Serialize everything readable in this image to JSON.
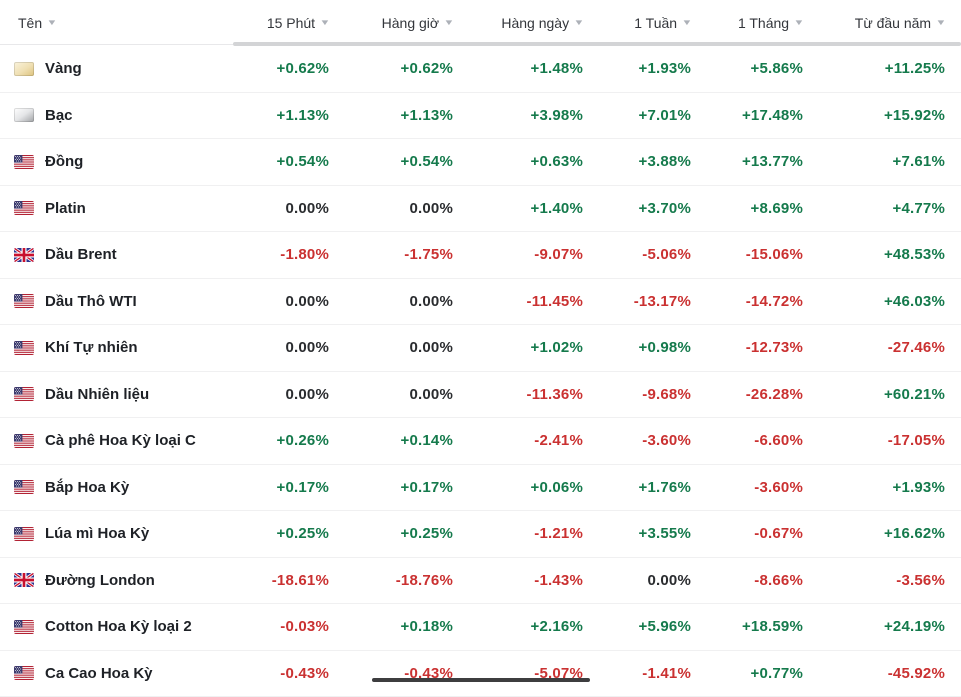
{
  "colors": {
    "positive": "#157a4c",
    "negative": "#ca3131",
    "neutral": "#2a2c2f",
    "scroll_hint": "#d3d4d6"
  },
  "table": {
    "columns": [
      {
        "label": "Tên",
        "sort_icon": "chevron-down-icon"
      },
      {
        "label": "15 Phút",
        "sort_icon": "chevron-down-icon"
      },
      {
        "label": "Hàng giờ",
        "sort_icon": "chevron-down-icon"
      },
      {
        "label": "Hàng ngày",
        "sort_icon": "chevron-down-icon"
      },
      {
        "label": "1 Tuần",
        "sort_icon": "chevron-down-icon"
      },
      {
        "label": "1 Tháng",
        "sort_icon": "chevron-down-icon"
      },
      {
        "label": "Từ đầu năm",
        "sort_icon": "chevron-down-icon"
      }
    ],
    "rows": [
      {
        "name": "Vàng",
        "icon": "gold-bar-icon",
        "values": [
          "+0.62%",
          "+0.62%",
          "+1.48%",
          "+1.93%",
          "+5.86%",
          "+11.25%"
        ]
      },
      {
        "name": "Bạc",
        "icon": "silver-bar-icon",
        "values": [
          "+1.13%",
          "+1.13%",
          "+3.98%",
          "+7.01%",
          "+17.48%",
          "+15.92%"
        ]
      },
      {
        "name": "Đồng",
        "icon": "flag-us-icon",
        "values": [
          "+0.54%",
          "+0.54%",
          "+0.63%",
          "+3.88%",
          "+13.77%",
          "+7.61%"
        ]
      },
      {
        "name": "Platin",
        "icon": "flag-us-icon",
        "values": [
          "0.00%",
          "0.00%",
          "+1.40%",
          "+3.70%",
          "+8.69%",
          "+4.77%"
        ]
      },
      {
        "name": "Dầu Brent",
        "icon": "flag-uk-icon",
        "values": [
          "-1.80%",
          "-1.75%",
          "-9.07%",
          "-5.06%",
          "-15.06%",
          "+48.53%"
        ]
      },
      {
        "name": "Dầu Thô WTI",
        "icon": "flag-us-icon",
        "values": [
          "0.00%",
          "0.00%",
          "-11.45%",
          "-13.17%",
          "-14.72%",
          "+46.03%"
        ]
      },
      {
        "name": "Khí Tự nhiên",
        "icon": "flag-us-icon",
        "values": [
          "0.00%",
          "0.00%",
          "+1.02%",
          "+0.98%",
          "-12.73%",
          "-27.46%"
        ]
      },
      {
        "name": "Dầu Nhiên liệu",
        "icon": "flag-us-icon",
        "values": [
          "0.00%",
          "0.00%",
          "-11.36%",
          "-9.68%",
          "-26.28%",
          "+60.21%"
        ]
      },
      {
        "name": "Cà phê Hoa Kỳ loại C",
        "icon": "flag-us-icon",
        "values": [
          "+0.26%",
          "+0.14%",
          "-2.41%",
          "-3.60%",
          "-6.60%",
          "-17.05%"
        ]
      },
      {
        "name": "Bắp Hoa Kỳ",
        "icon": "flag-us-icon",
        "values": [
          "+0.17%",
          "+0.17%",
          "+0.06%",
          "+1.76%",
          "-3.60%",
          "+1.93%"
        ]
      },
      {
        "name": "Lúa mì Hoa Kỳ",
        "icon": "flag-us-icon",
        "values": [
          "+0.25%",
          "+0.25%",
          "-1.21%",
          "+3.55%",
          "-0.67%",
          "+16.62%"
        ]
      },
      {
        "name": "Đường London",
        "icon": "flag-uk-icon",
        "values": [
          "-18.61%",
          "-18.76%",
          "-1.43%",
          "0.00%",
          "-8.66%",
          "-3.56%"
        ]
      },
      {
        "name": "Cotton Hoa Kỳ loại 2",
        "icon": "flag-us-icon",
        "values": [
          "-0.03%",
          "+0.18%",
          "+2.16%",
          "+5.96%",
          "+18.59%",
          "+24.19%"
        ]
      },
      {
        "name": "Ca Cao Hoa Kỳ",
        "icon": "flag-us-icon",
        "values": [
          "-0.43%",
          "-0.43%",
          "-5.07%",
          "-1.41%",
          "+0.77%",
          "-45.92%"
        ]
      }
    ]
  }
}
